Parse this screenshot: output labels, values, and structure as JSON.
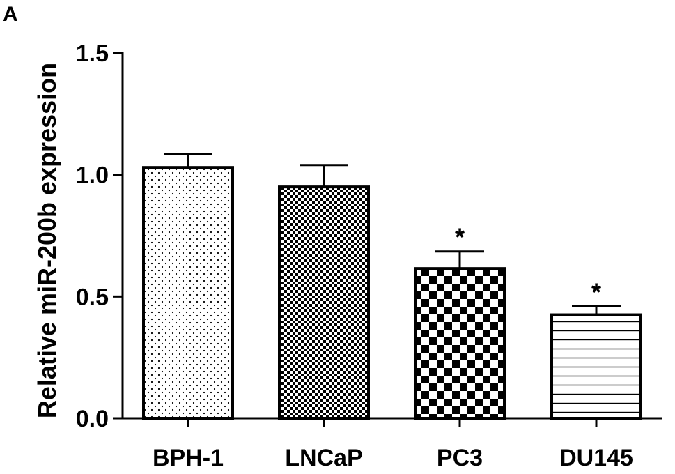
{
  "panel_label": "A",
  "chart_data": {
    "type": "bar",
    "categories": [
      "BPH-1",
      "LNCaP",
      "PC3",
      "DU145"
    ],
    "values": [
      1.03,
      0.95,
      0.615,
      0.425
    ],
    "errors": [
      0.055,
      0.09,
      0.07,
      0.035
    ],
    "significance": [
      "",
      "",
      "*",
      "*"
    ],
    "patterns": [
      "sparse-dots",
      "fine-checker",
      "coarse-checker",
      "horizontal-lines"
    ],
    "title": "",
    "xlabel": "",
    "ylabel": "Relative miR-200b expression",
    "ylim": [
      0,
      1.5
    ],
    "yticks": [
      0.0,
      0.5,
      1.0,
      1.5
    ],
    "ytick_labels": [
      "0.0",
      "0.5",
      "1.0",
      "1.5"
    ],
    "grid": false,
    "colors": {
      "bar_edge": "#000000",
      "bar_fill": "#ffffff"
    }
  }
}
